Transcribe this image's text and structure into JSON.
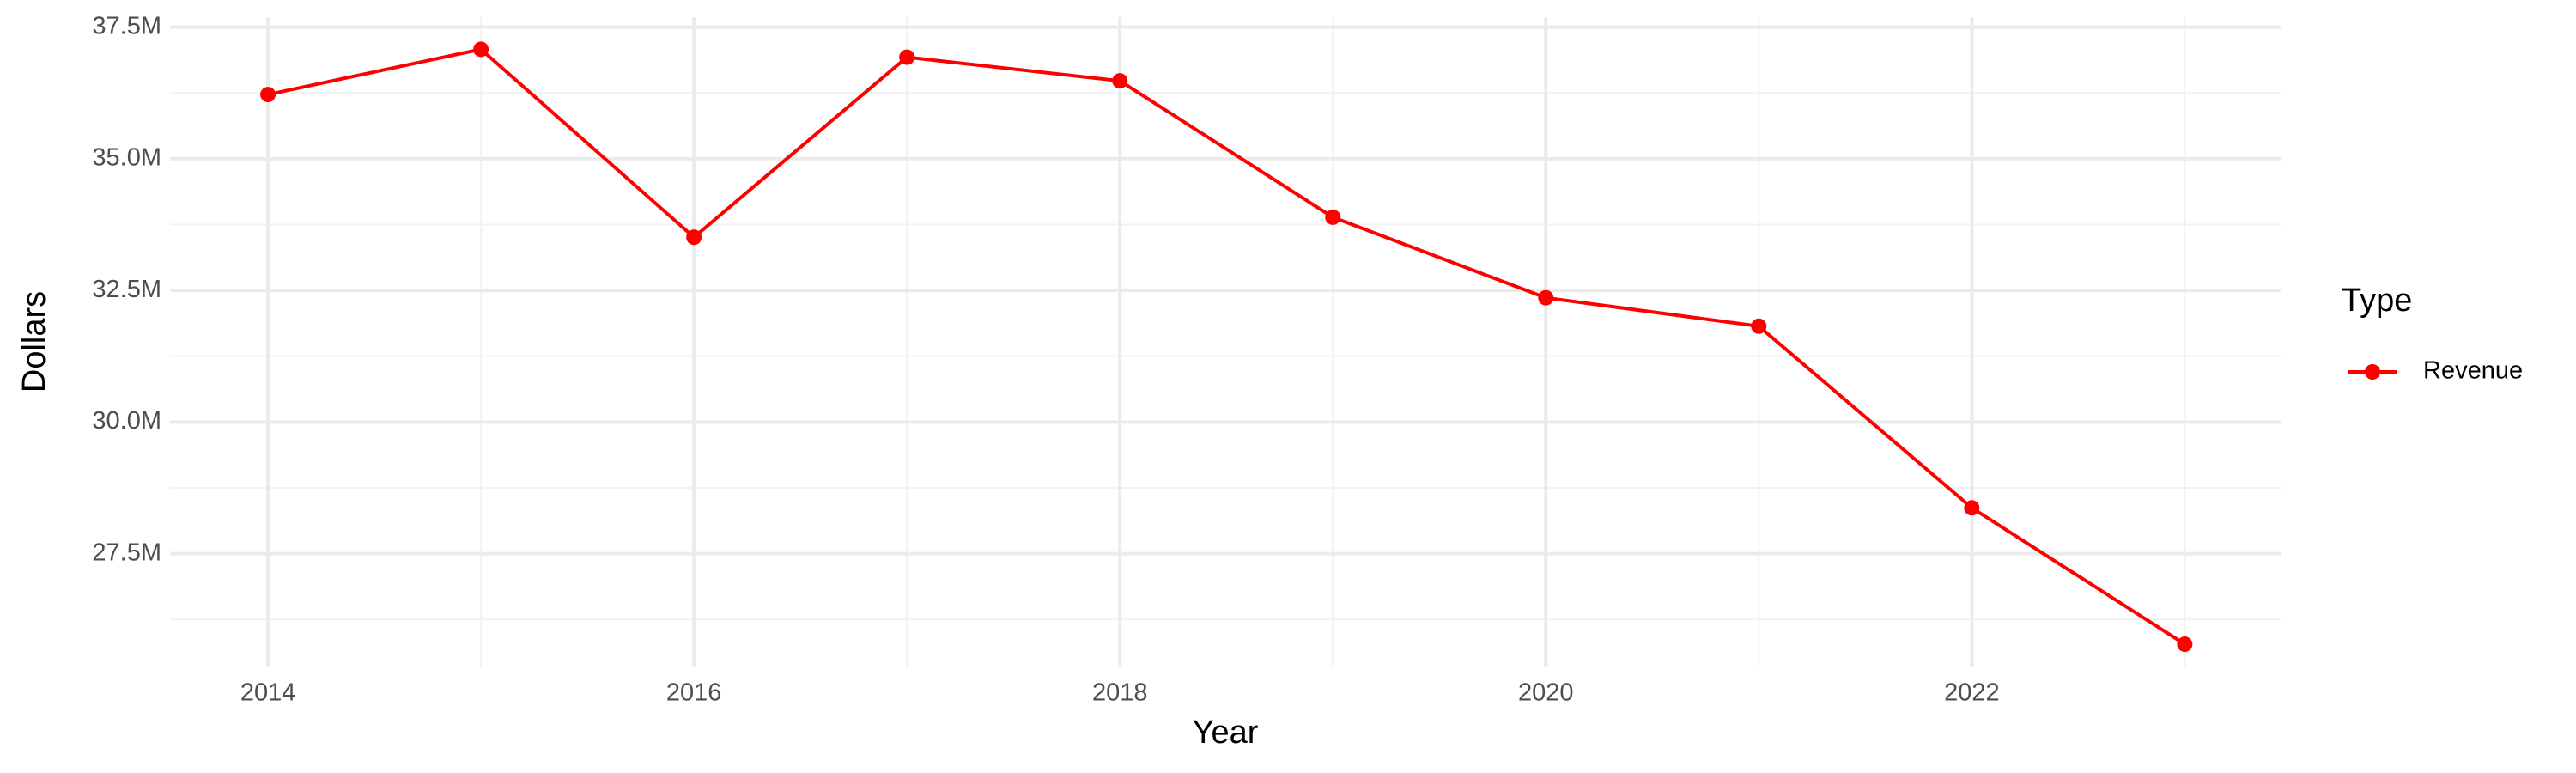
{
  "chart_data": {
    "type": "line",
    "x_label": "Year",
    "y_label": "Dollars",
    "x": [
      2014,
      2015,
      2016,
      2017,
      2018,
      2019,
      2020,
      2021,
      2022,
      2023
    ],
    "series": [
      {
        "name": "Revenue",
        "color": "#ff0000",
        "values": [
          36220000,
          37080000,
          33510000,
          36930000,
          36480000,
          33890000,
          32360000,
          31820000,
          28370000,
          25780000
        ]
      }
    ],
    "xlim": [
      2013.54,
      2023.45
    ],
    "xticks": [
      2014,
      2016,
      2018,
      2020,
      2022
    ],
    "ylim": [
      25340000,
      37690000
    ],
    "yticks": [
      {
        "value": 27500000,
        "label": "27.5M"
      },
      {
        "value": 30000000,
        "label": "30.0M"
      },
      {
        "value": 32500000,
        "label": "32.5M"
      },
      {
        "value": 35000000,
        "label": "35.0M"
      },
      {
        "value": 37500000,
        "label": "37.5M"
      }
    ],
    "grid": true,
    "legend_title": "Type",
    "legend_position": "right"
  }
}
